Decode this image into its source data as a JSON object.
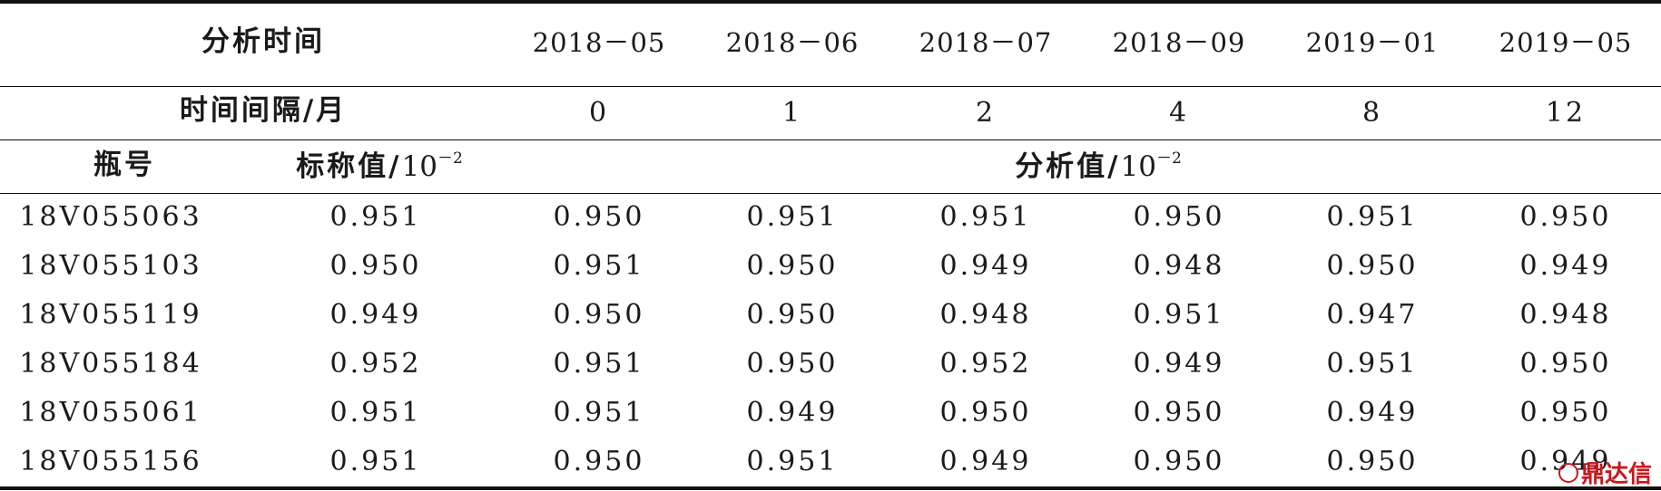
{
  "header": {
    "analysis_time_label": "分析时间",
    "dates": [
      "2018－05",
      "2018－06",
      "2018－07",
      "2018－09",
      "2019－01",
      "2019－05"
    ],
    "interval_label": "时间间隔/月",
    "intervals": [
      "0",
      "1",
      "2",
      "4",
      "8",
      "12"
    ],
    "bottle_label": "瓶号",
    "nominal_label": "标称值/",
    "analyzed_label": "分析值/",
    "unit_base": "10",
    "unit_exp": "－2"
  },
  "rows": [
    {
      "bottle": "18V055063",
      "nominal": "0.951",
      "values": [
        "0.950",
        "0.951",
        "0.951",
        "0.950",
        "0.951",
        "0.950"
      ]
    },
    {
      "bottle": "18V055103",
      "nominal": "0.950",
      "values": [
        "0.951",
        "0.950",
        "0.949",
        "0.948",
        "0.950",
        "0.949"
      ]
    },
    {
      "bottle": "18V055119",
      "nominal": "0.949",
      "values": [
        "0.950",
        "0.950",
        "0.948",
        "0.951",
        "0.947",
        "0.948"
      ]
    },
    {
      "bottle": "18V055184",
      "nominal": "0.952",
      "values": [
        "0.951",
        "0.950",
        "0.952",
        "0.949",
        "0.951",
        "0.950"
      ]
    },
    {
      "bottle": "18V055061",
      "nominal": "0.951",
      "values": [
        "0.951",
        "0.949",
        "0.950",
        "0.950",
        "0.949",
        "0.950"
      ]
    },
    {
      "bottle": "18V055156",
      "nominal": "0.951",
      "values": [
        "0.950",
        "0.951",
        "0.949",
        "0.950",
        "0.950",
        "0.949"
      ]
    }
  ],
  "watermark": "鼎达信"
}
